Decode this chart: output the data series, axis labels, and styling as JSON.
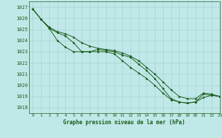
{
  "title": "Graphe pression niveau de la mer (hPa)",
  "bg_color": "#c0e8e8",
  "grid_color": "#a8d0d0",
  "line_color": "#1a5c1a",
  "marker_color": "#1a5c1a",
  "xlim": [
    -0.5,
    23
  ],
  "ylim": [
    1017.5,
    1027.5
  ],
  "yticks": [
    1018,
    1019,
    1020,
    1021,
    1022,
    1023,
    1024,
    1025,
    1026,
    1027
  ],
  "xticks": [
    0,
    1,
    2,
    3,
    4,
    5,
    6,
    7,
    8,
    9,
    10,
    11,
    12,
    13,
    14,
    15,
    16,
    17,
    18,
    19,
    20,
    21,
    22,
    23
  ],
  "series": [
    [
      1026.8,
      1025.9,
      1025.1,
      1024.7,
      1024.4,
      1023.8,
      1023.0,
      1023.0,
      1023.2,
      1023.1,
      1023.0,
      1022.7,
      1022.5,
      1021.9,
      1021.3,
      1020.6,
      1019.7,
      1018.8,
      1018.5,
      1018.4,
      1018.5,
      1019.2,
      1019.1,
      1019.0
    ],
    [
      1026.8,
      1025.9,
      1025.1,
      1024.0,
      1023.4,
      1023.0,
      1023.0,
      1023.0,
      1023.0,
      1023.0,
      1022.8,
      1022.2,
      1021.6,
      1021.1,
      1020.6,
      1020.0,
      1019.3,
      1018.7,
      1018.5,
      1018.4,
      1018.5,
      1018.9,
      1019.1,
      1019.0
    ],
    [
      1026.8,
      1025.9,
      1025.2,
      1024.8,
      1024.6,
      1024.3,
      1023.8,
      1023.5,
      1023.3,
      1023.2,
      1023.1,
      1022.9,
      1022.6,
      1022.2,
      1021.6,
      1021.0,
      1020.3,
      1019.6,
      1019.0,
      1018.8,
      1018.8,
      1019.3,
      1019.2,
      1019.0
    ]
  ]
}
